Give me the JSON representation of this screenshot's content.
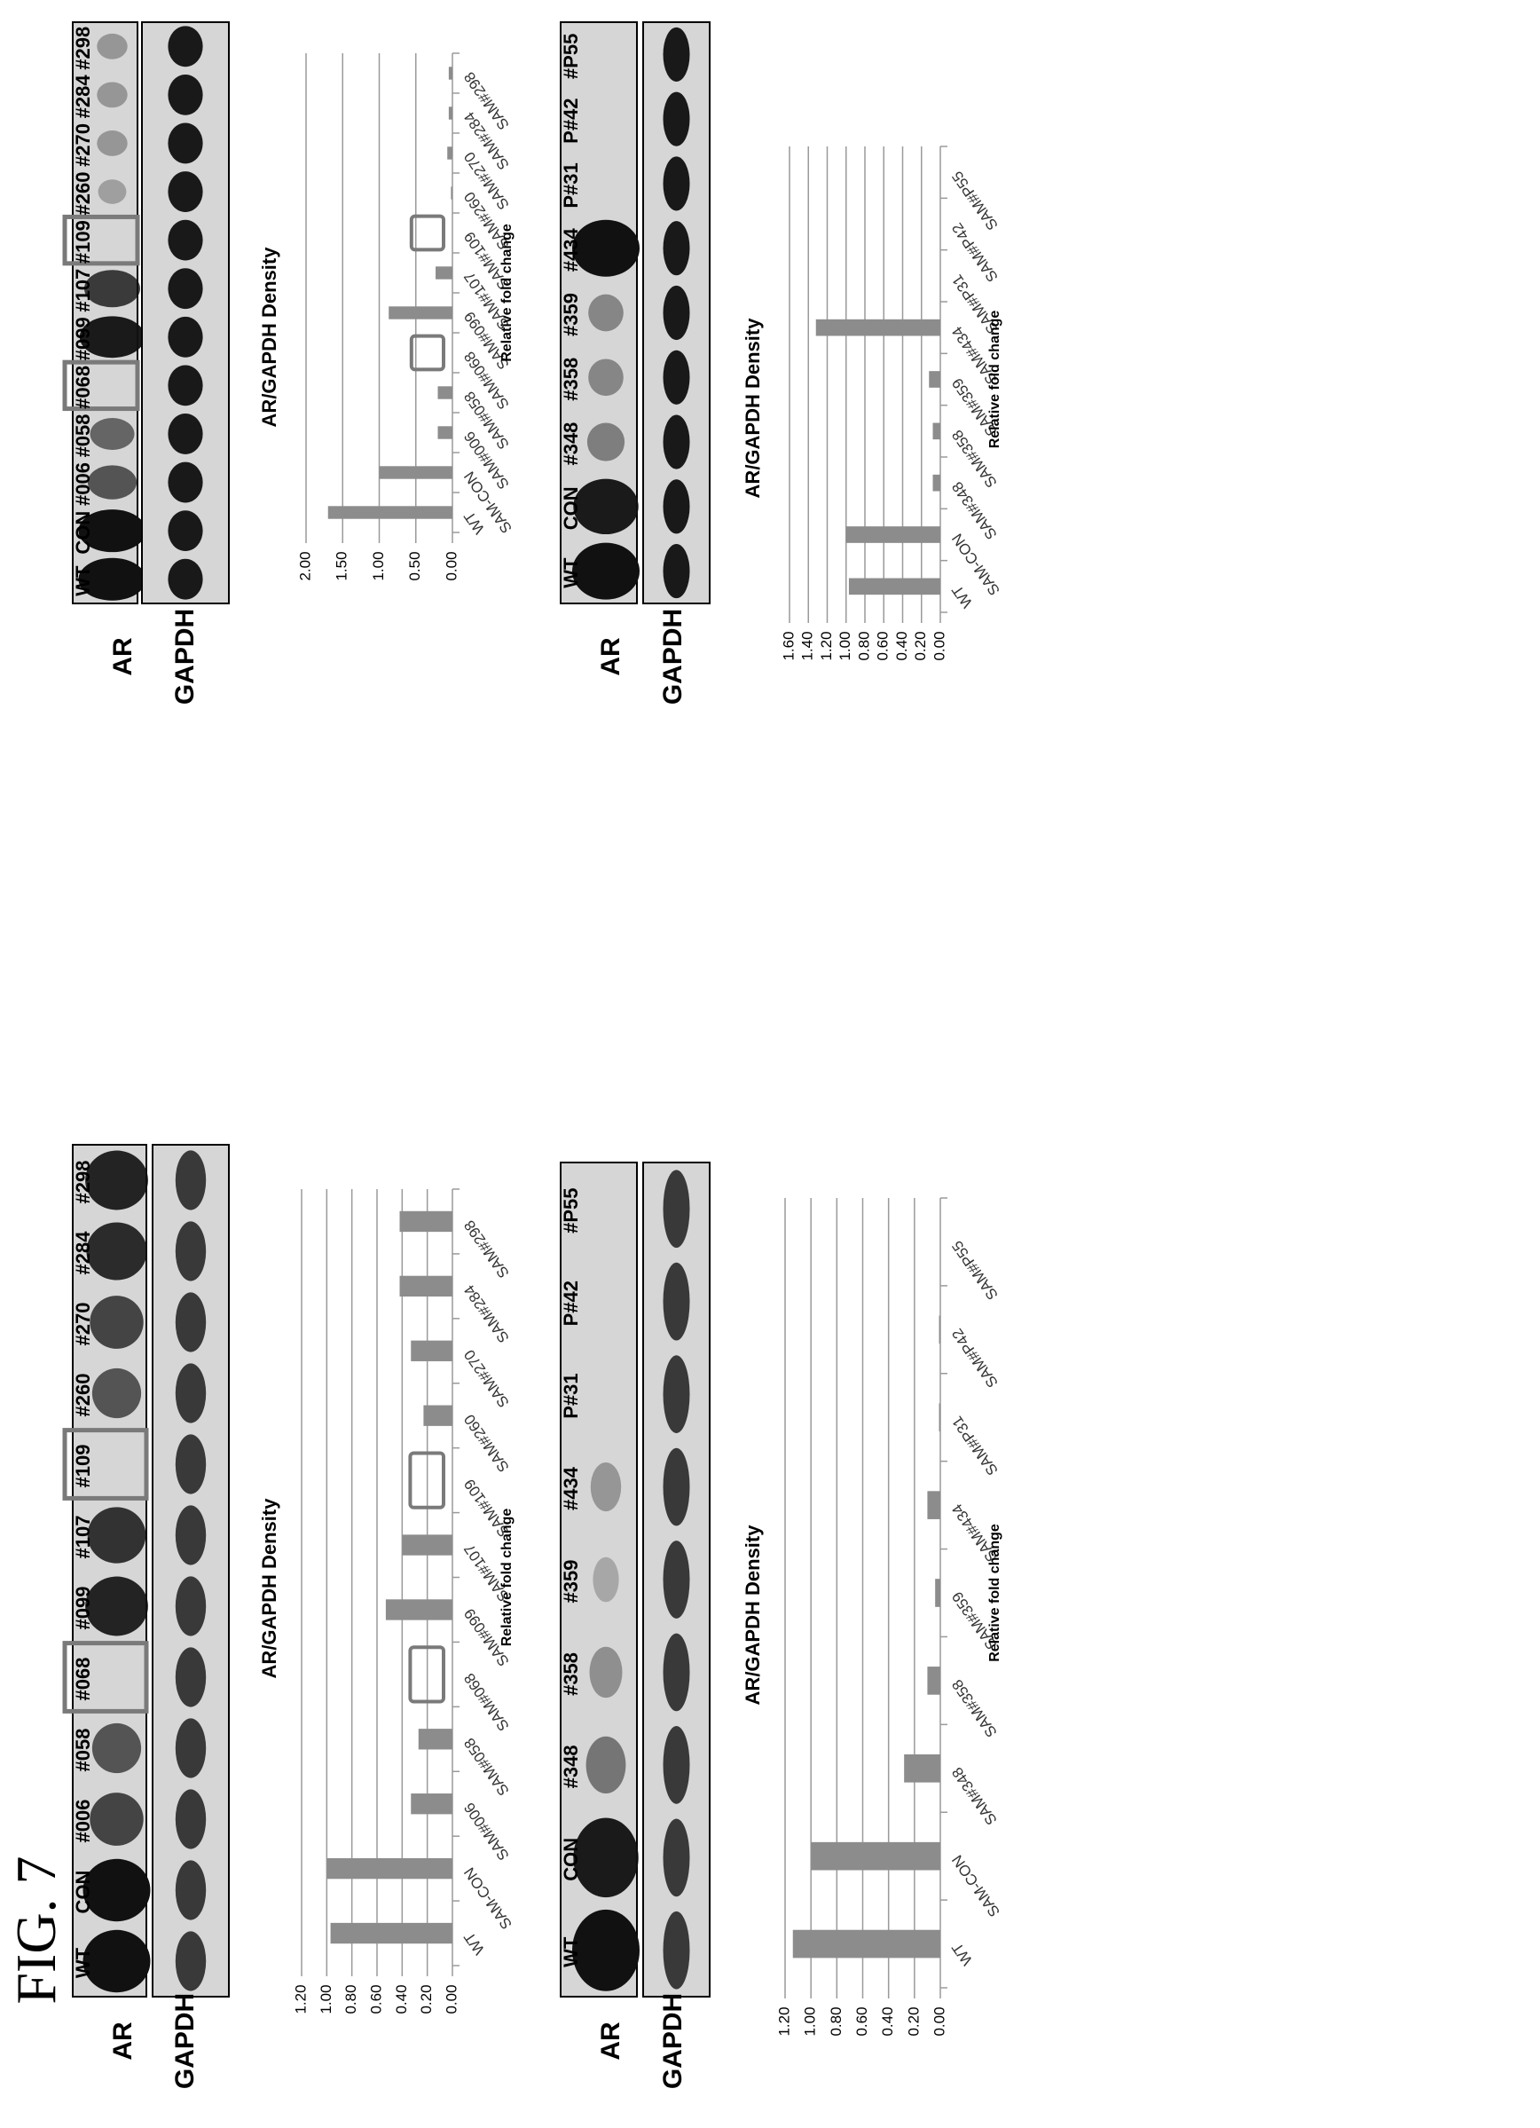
{
  "figure_label": "FIG. 7",
  "colors": {
    "bar": "#8c8c8c",
    "grid": "#9a9a9a",
    "box": "#7a7a7a",
    "blot_bg": "#d6d6d6",
    "band": "#111111"
  },
  "panels": [
    {
      "blot": {
        "lanes": [
          "WT",
          "CON",
          "#006",
          "#058",
          "#068",
          "#099",
          "#107",
          "#109",
          "#260",
          "#270",
          "#284",
          "#298"
        ],
        "ar_label": "AR",
        "gapdh_label": "GAPDH",
        "ar_intensity": [
          1,
          1,
          0.7,
          0.6,
          0,
          0.9,
          0.8,
          0,
          0.6,
          0.7,
          0.85,
          0.9
        ],
        "gapdh_intensity": [
          0.75,
          0.75,
          0.75,
          0.75,
          0.75,
          0.75,
          0.75,
          0.75,
          0.75,
          0.75,
          0.75,
          0.75
        ],
        "boxed_lanes": [
          "#068",
          "#109"
        ]
      },
      "chart_data": {
        "type": "bar",
        "title": "AR/GAPDH Density",
        "ylabel": "Relative fold change",
        "categories": [
          "WT",
          "SAM-CON",
          "SAM#006",
          "SAM#058",
          "SAM#068",
          "SAM#099",
          "SAM#107",
          "SAM#109",
          "SAM#260",
          "SAM#270",
          "SAM#284",
          "SAM#298"
        ],
        "values": [
          0.97,
          1.0,
          0.33,
          0.27,
          0.0,
          0.53,
          0.4,
          0.0,
          0.23,
          0.33,
          0.42,
          0.42
        ],
        "ylim": [
          0,
          1.2
        ],
        "yticks": [
          "0.00",
          "0.20",
          "0.40",
          "0.60",
          "0.80",
          "1.00",
          "1.20"
        ],
        "grid": true,
        "boxed_categories": [
          "SAM#068",
          "SAM#109"
        ]
      }
    },
    {
      "blot": {
        "lanes": [
          "WT",
          "CON",
          "#348",
          "#358",
          "#359",
          "#434",
          "P#31",
          "P#42",
          "#P55"
        ],
        "ar_label": "AR",
        "gapdh_label": "GAPDH",
        "ar_intensity": [
          1,
          0.95,
          0.4,
          0.25,
          0.1,
          0.2,
          0,
          0,
          0
        ],
        "gapdh_intensity": [
          0.75,
          0.75,
          0.75,
          0.75,
          0.75,
          0.75,
          0.75,
          0.75,
          0.75
        ],
        "boxed_lanes": []
      },
      "chart_data": {
        "type": "bar",
        "title": "AR/GAPDH Density",
        "ylabel": "Relative fold change",
        "categories": [
          "WT",
          "SAM-CON",
          "SAM#348",
          "SAM#358",
          "SAM#359",
          "SAM#434",
          "SAM#P31",
          "SAM#P42",
          "SAM#P55"
        ],
        "values": [
          1.14,
          1.0,
          0.28,
          0.1,
          0.04,
          0.1,
          0.01,
          0.01,
          0.0
        ],
        "ylim": [
          0,
          1.2
        ],
        "yticks": [
          "0.00",
          "0.20",
          "0.40",
          "0.60",
          "0.80",
          "1.00",
          "1.20"
        ],
        "grid": true,
        "boxed_categories": []
      }
    },
    {
      "blot": {
        "lanes": [
          "WT",
          "CON",
          "#006",
          "#058",
          "#068",
          "#099",
          "#107",
          "#109",
          "#260",
          "#270",
          "#284",
          "#298"
        ],
        "ar_label": "AR",
        "gapdh_label": "GAPDH",
        "ar_intensity": [
          1,
          1,
          0.6,
          0.5,
          0,
          0.95,
          0.75,
          0,
          0.15,
          0.2,
          0.2,
          0.2
        ],
        "gapdh_intensity": [
          0.95,
          0.95,
          0.95,
          0.95,
          0.95,
          0.95,
          0.95,
          0.95,
          0.95,
          0.95,
          0.95,
          0.95
        ],
        "boxed_lanes": [
          "#068",
          "#109"
        ]
      },
      "chart_data": {
        "type": "bar",
        "title": "AR/GAPDH Density",
        "ylabel": "Relative fold change",
        "categories": [
          "WT",
          "SAM-CON",
          "SAM#006",
          "SAM#058",
          "SAM#068",
          "SAM#099",
          "SAM#107",
          "SAM#109",
          "SAM#260",
          "SAM#270",
          "SAM#284",
          "SAM#298"
        ],
        "values": [
          1.7,
          1.0,
          0.2,
          0.2,
          0.0,
          0.87,
          0.23,
          0.0,
          0.02,
          0.07,
          0.05,
          0.05
        ],
        "ylim": [
          0,
          2.0
        ],
        "yticks": [
          "0.00",
          "0.50",
          "1.00",
          "1.50",
          "2.00"
        ],
        "grid": true,
        "boxed_categories": [
          "SAM#068",
          "SAM#109"
        ]
      }
    },
    {
      "blot": {
        "lanes": [
          "WT",
          "CON",
          "#348",
          "#358",
          "#359",
          "#434",
          "P#31",
          "P#42",
          "#P55"
        ],
        "ar_label": "AR",
        "gapdh_label": "GAPDH",
        "ar_intensity": [
          1,
          0.95,
          0.35,
          0.3,
          0.3,
          1,
          0,
          0,
          0
        ],
        "gapdh_intensity": [
          0.95,
          0.95,
          0.95,
          0.95,
          0.95,
          0.95,
          0.95,
          0.95,
          0.95
        ],
        "boxed_lanes": []
      },
      "chart_data": {
        "type": "bar",
        "title": "AR/GAPDH Density",
        "ylabel": "Relative fold change",
        "categories": [
          "WT",
          "SAM-CON",
          "SAM#348",
          "SAM#358",
          "SAM#359",
          "SAM#434",
          "SAM#P31",
          "SAM#P42",
          "SAM#P55"
        ],
        "values": [
          0.97,
          1.0,
          0.08,
          0.08,
          0.12,
          1.32,
          0.0,
          0.0,
          0.0
        ],
        "ylim": [
          0,
          1.6
        ],
        "yticks": [
          "0.00",
          "0.20",
          "0.40",
          "0.60",
          "0.80",
          "1.00",
          "1.20",
          "1.40",
          "1.60"
        ],
        "grid": true,
        "boxed_categories": []
      }
    }
  ]
}
